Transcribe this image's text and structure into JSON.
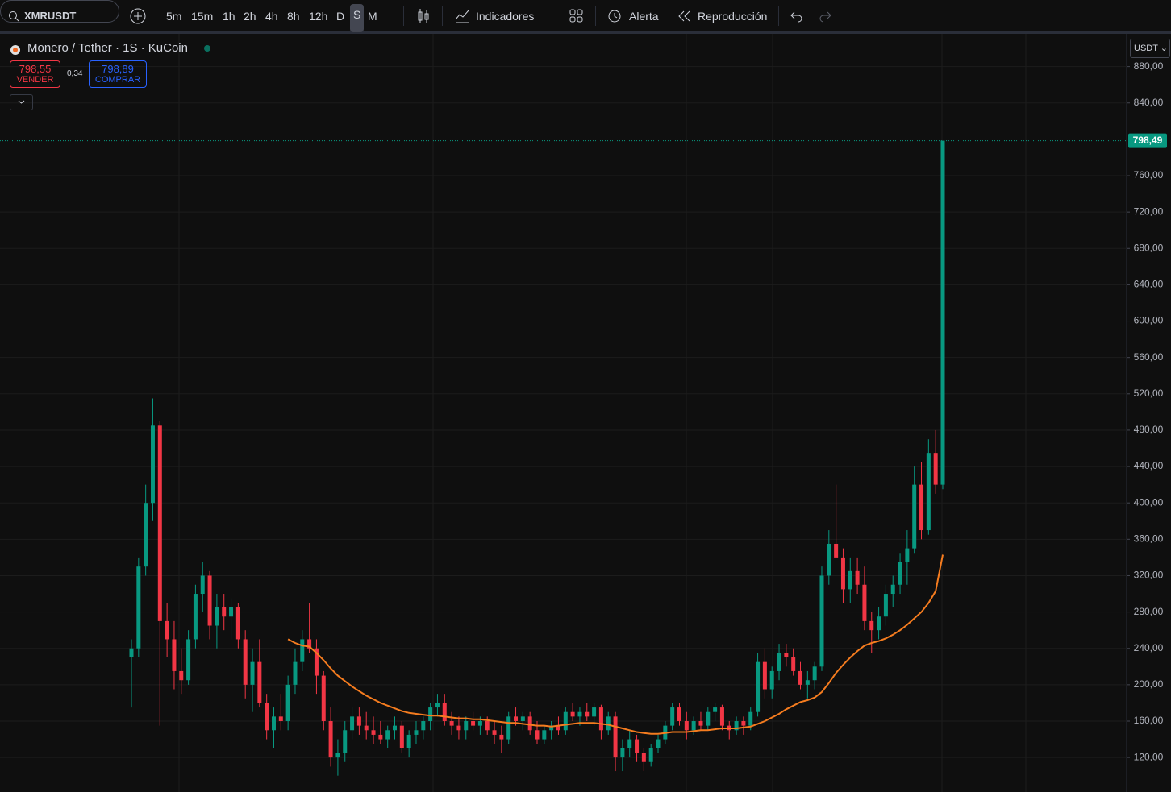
{
  "toolbar": {
    "symbol": "XMRUSDT",
    "timeframes": [
      "5m",
      "15m",
      "1h",
      "2h",
      "4h",
      "8h",
      "12h",
      "D",
      "S",
      "M"
    ],
    "indicators": "Indicadores",
    "alert": "Alerta",
    "replay": "Reproducción"
  },
  "legend": {
    "title": "Monero / Tether · 1S · KuCoin",
    "sell": {
      "price": "798,55",
      "label": "VENDER"
    },
    "spread": "0,34",
    "buy": {
      "price": "798,89",
      "label": "COMPRAR"
    },
    "currency": "USDT"
  },
  "chart_data": {
    "type": "candlestick",
    "up_color": "#089981",
    "down_color": "#f23645",
    "grid": true,
    "open": [
      230,
      240,
      330,
      400,
      485,
      270,
      250,
      215,
      205,
      250,
      300,
      320,
      265,
      285,
      275,
      285,
      250,
      200,
      225,
      180,
      150,
      165,
      160,
      200,
      225,
      250,
      240,
      210,
      160,
      120,
      125,
      150,
      165,
      155,
      150,
      145,
      140,
      150,
      155,
      130,
      145,
      150,
      160,
      175,
      180,
      160,
      155,
      150,
      160,
      155,
      160,
      150,
      145,
      140,
      165,
      160,
      165,
      150,
      140,
      150,
      155,
      150,
      170,
      165,
      170,
      165,
      175,
      150,
      165,
      120,
      130,
      140,
      125,
      115,
      130,
      140,
      155,
      175,
      160,
      150,
      160,
      155,
      170,
      175,
      155,
      150,
      160,
      155,
      170,
      225,
      195,
      215,
      235,
      230,
      215,
      200,
      205,
      220,
      320,
      355,
      340,
      305,
      325,
      310,
      270,
      260,
      275,
      300,
      310,
      335,
      350,
      420,
      370,
      455,
      420
    ],
    "high": [
      250,
      340,
      420,
      515,
      490,
      290,
      270,
      240,
      260,
      310,
      335,
      325,
      300,
      300,
      295,
      290,
      260,
      240,
      250,
      190,
      175,
      190,
      210,
      240,
      260,
      290,
      250,
      215,
      175,
      140,
      160,
      175,
      175,
      170,
      165,
      160,
      155,
      165,
      160,
      150,
      160,
      165,
      180,
      190,
      190,
      170,
      165,
      165,
      170,
      165,
      165,
      160,
      155,
      170,
      175,
      170,
      170,
      160,
      155,
      160,
      165,
      175,
      180,
      175,
      180,
      180,
      178,
      170,
      170,
      140,
      150,
      145,
      130,
      135,
      145,
      160,
      180,
      180,
      170,
      165,
      170,
      175,
      180,
      178,
      160,
      165,
      165,
      175,
      235,
      240,
      220,
      245,
      245,
      240,
      225,
      215,
      225,
      330,
      370,
      420,
      350,
      340,
      340,
      330,
      280,
      285,
      310,
      320,
      345,
      370,
      440,
      445,
      470,
      480,
      798.49
    ],
    "low": [
      175,
      230,
      320,
      380,
      155,
      230,
      195,
      190,
      200,
      240,
      280,
      250,
      240,
      260,
      250,
      240,
      185,
      170,
      175,
      140,
      130,
      150,
      150,
      190,
      215,
      235,
      190,
      150,
      110,
      100,
      115,
      140,
      145,
      140,
      135,
      135,
      130,
      140,
      125,
      120,
      135,
      140,
      150,
      165,
      155,
      145,
      140,
      140,
      150,
      145,
      145,
      135,
      125,
      135,
      155,
      150,
      145,
      135,
      135,
      140,
      145,
      145,
      160,
      155,
      160,
      155,
      140,
      145,
      105,
      105,
      120,
      115,
      105,
      110,
      125,
      135,
      150,
      155,
      140,
      145,
      150,
      150,
      160,
      150,
      140,
      145,
      145,
      150,
      165,
      185,
      185,
      205,
      220,
      210,
      195,
      185,
      195,
      215,
      310,
      340,
      290,
      290,
      300,
      260,
      235,
      250,
      265,
      285,
      300,
      310,
      345,
      360,
      365,
      410,
      415
    ],
    "close": [
      240,
      330,
      400,
      485,
      270,
      250,
      215,
      205,
      250,
      300,
      320,
      265,
      285,
      275,
      285,
      250,
      200,
      225,
      180,
      150,
      165,
      160,
      200,
      225,
      250,
      240,
      210,
      160,
      120,
      125,
      150,
      165,
      155,
      150,
      145,
      140,
      150,
      155,
      130,
      145,
      150,
      160,
      175,
      180,
      160,
      155,
      150,
      160,
      155,
      160,
      150,
      145,
      140,
      165,
      160,
      165,
      150,
      140,
      150,
      155,
      150,
      170,
      165,
      170,
      165,
      175,
      150,
      165,
      120,
      130,
      140,
      125,
      115,
      130,
      140,
      155,
      175,
      160,
      150,
      160,
      155,
      170,
      175,
      155,
      150,
      160,
      155,
      170,
      225,
      195,
      215,
      235,
      230,
      215,
      200,
      205,
      220,
      320,
      355,
      340,
      305,
      325,
      310,
      270,
      260,
      275,
      300,
      310,
      335,
      350,
      420,
      370,
      455,
      420,
      798.49
    ],
    "ma": {
      "color": "#f57c1f",
      "values": [
        null,
        null,
        null,
        null,
        null,
        null,
        null,
        null,
        null,
        null,
        null,
        null,
        null,
        null,
        null,
        null,
        null,
        null,
        null,
        null,
        null,
        null,
        250,
        246,
        243,
        242,
        235,
        227,
        218,
        210,
        204,
        198,
        193,
        188,
        184,
        180,
        177,
        174,
        171,
        169,
        168,
        167,
        166,
        166,
        165,
        164,
        163,
        163,
        162,
        162,
        161,
        160,
        159,
        158,
        158,
        157,
        156,
        155,
        155,
        154,
        155,
        156,
        157,
        158,
        158,
        158,
        157,
        156,
        154,
        152,
        150,
        148,
        147,
        146,
        146,
        147,
        148,
        148,
        148,
        149,
        150,
        150,
        151,
        152,
        152,
        152,
        153,
        154,
        157,
        160,
        164,
        168,
        173,
        177,
        181,
        183,
        186,
        192,
        202,
        213,
        222,
        230,
        237,
        243,
        246,
        248,
        251,
        255,
        260,
        266,
        273,
        280,
        290,
        303,
        343
      ]
    },
    "last_price": {
      "value": 798.49,
      "label": "798,49"
    },
    "ylim": [
      82,
      916
    ],
    "yticks": [
      {
        "value": 120,
        "label": "120,00"
      },
      {
        "value": 160,
        "label": "160,00"
      },
      {
        "value": 200,
        "label": "200,00"
      },
      {
        "value": 240,
        "label": "240,00"
      },
      {
        "value": 280,
        "label": "280,00"
      },
      {
        "value": 320,
        "label": "320,00"
      },
      {
        "value": 360,
        "label": "360,00"
      },
      {
        "value": 400,
        "label": "400,00"
      },
      {
        "value": 440,
        "label": "440,00"
      },
      {
        "value": 480,
        "label": "480,00"
      },
      {
        "value": 520,
        "label": "520,00"
      },
      {
        "value": 560,
        "label": "560,00"
      },
      {
        "value": 600,
        "label": "600,00"
      },
      {
        "value": 640,
        "label": "640,00"
      },
      {
        "value": 680,
        "label": "680,00"
      },
      {
        "value": 720,
        "label": "720,00"
      },
      {
        "value": 760,
        "label": "760,00"
      },
      {
        "value": 840,
        "label": "840,00"
      },
      {
        "value": 880,
        "label": "880,00"
      }
    ]
  }
}
